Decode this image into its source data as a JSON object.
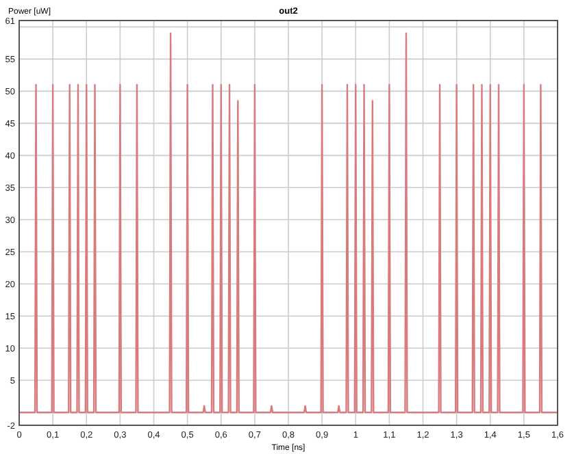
{
  "chart_data": {
    "type": "line",
    "title": "out2",
    "xlabel": "Time [ns]",
    "ylabel": "Power [uW]",
    "xlim": [
      0,
      1.6
    ],
    "ylim": [
      -2,
      61
    ],
    "xticks": [
      0,
      {
        "value": 0.1,
        "label": "0,1"
      },
      {
        "value": 0.2,
        "label": "0,2"
      },
      {
        "value": 0.3,
        "label": "0,3"
      },
      {
        "value": 0.4,
        "label": "0,4"
      },
      {
        "value": 0.5,
        "label": "0,5"
      },
      {
        "value": 0.6,
        "label": "0,6"
      },
      {
        "value": 0.7,
        "label": "0,7"
      },
      {
        "value": 0.8,
        "label": "0,8"
      },
      {
        "value": 0.9,
        "label": "0,9"
      },
      1,
      {
        "value": 1.1,
        "label": "1,1"
      },
      {
        "value": 1.2,
        "label": "1,2"
      },
      {
        "value": 1.3,
        "label": "1,3"
      },
      {
        "value": 1.4,
        "label": "1,4"
      },
      {
        "value": 1.5,
        "label": "1,5"
      },
      {
        "value": 1.6,
        "label": "1,6"
      }
    ],
    "yticks": [
      -2,
      5,
      10,
      15,
      20,
      25,
      30,
      35,
      40,
      45,
      50,
      55,
      {
        "value": 60,
        "label": null
      },
      61
    ],
    "grid": true,
    "marker": "none",
    "line_style": "solid",
    "series": [
      {
        "color": "#d97a7d",
        "x": [
          0,
          0.047,
          0.05,
          0.053,
          0.097,
          0.1,
          0.103,
          0.147,
          0.15,
          0.153,
          0.172,
          0.175,
          0.178,
          0.197,
          0.2,
          0.203,
          0.222,
          0.225,
          0.228,
          0.297,
          0.3,
          0.303,
          0.347,
          0.35,
          0.353,
          0.447,
          0.45,
          0.453,
          0.497,
          0.5,
          0.503,
          0.547,
          0.55,
          0.553,
          0.572,
          0.575,
          0.578,
          0.597,
          0.6,
          0.603,
          0.622,
          0.625,
          0.628,
          0.647,
          0.65,
          0.653,
          0.697,
          0.7,
          0.703,
          0.747,
          0.75,
          0.753,
          0.847,
          0.85,
          0.853,
          0.897,
          0.9,
          0.903,
          0.947,
          0.95,
          0.953,
          0.972,
          0.975,
          0.978,
          0.997,
          1,
          1.003,
          1.022,
          1.025,
          1.028,
          1.047,
          1.05,
          1.053,
          1.097,
          1.1,
          1.103,
          1.147,
          1.15,
          1.153,
          1.247,
          1.25,
          1.253,
          1.297,
          1.3,
          1.303,
          1.347,
          1.35,
          1.353,
          1.372,
          1.375,
          1.378,
          1.397,
          1.4,
          1.403,
          1.422,
          1.425,
          1.428,
          1.497,
          1.5,
          1.503,
          1.547,
          1.55,
          1.553,
          1.6
        ],
        "values": [
          0,
          0,
          51,
          0,
          0,
          51,
          0,
          0,
          51,
          0,
          0,
          51,
          0,
          0,
          51,
          0,
          0,
          51,
          0,
          0,
          51,
          0,
          0,
          51,
          0,
          0,
          59,
          0,
          0,
          51,
          0,
          0,
          1,
          0,
          0,
          51,
          0,
          0,
          51,
          0,
          0,
          51,
          0,
          0,
          48.5,
          0,
          0,
          51,
          0,
          0,
          1,
          0,
          0,
          1,
          0,
          0,
          51,
          0,
          0,
          1,
          0,
          0,
          51,
          0,
          0,
          51,
          0,
          0,
          51,
          0,
          0,
          48.5,
          0,
          0,
          51,
          0,
          0,
          59,
          0,
          0,
          51,
          0,
          0,
          51,
          0,
          0,
          51,
          0,
          0,
          51,
          0,
          0,
          51,
          0,
          0,
          51,
          0,
          0,
          51,
          0,
          0,
          51,
          0,
          0
        ]
      }
    ]
  }
}
